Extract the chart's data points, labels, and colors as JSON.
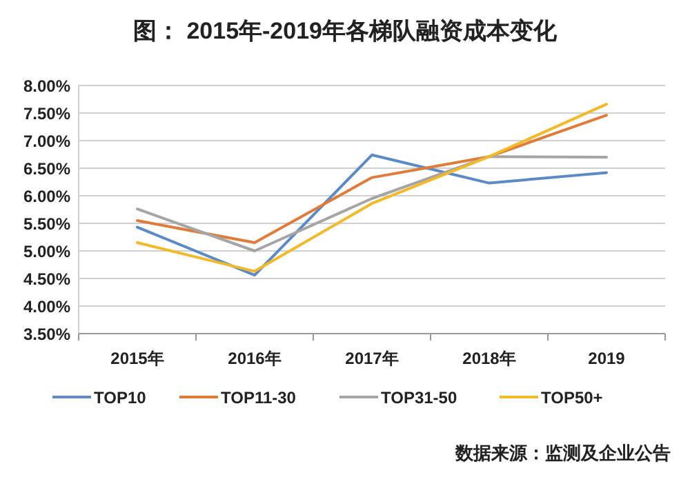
{
  "chart_data": {
    "type": "line",
    "title": "图： 2015年-2019年各梯队融资成本变化",
    "categories": [
      "2015年",
      "2016年",
      "2017年",
      "2018年",
      "2019"
    ],
    "series": [
      {
        "name": "TOP10",
        "color": "#5b8ac6",
        "values": [
          5.43,
          4.56,
          6.74,
          6.23,
          6.42
        ]
      },
      {
        "name": "TOP11-30",
        "color": "#e07b39",
        "values": [
          5.55,
          5.15,
          6.33,
          6.71,
          7.46
        ]
      },
      {
        "name": "TOP31-50",
        "color": "#a5a5a5",
        "values": [
          5.76,
          5.0,
          5.95,
          6.71,
          6.7
        ]
      },
      {
        "name": "TOP50+",
        "color": "#f2b929",
        "values": [
          5.15,
          4.63,
          5.86,
          6.71,
          7.66
        ]
      }
    ],
    "ylim": [
      3.5,
      8
    ],
    "yticks": [
      {
        "value": 3.5,
        "label": "3.50%"
      },
      {
        "value": 4,
        "label": "4.00%"
      },
      {
        "value": 4.5,
        "label": "4.50%"
      },
      {
        "value": 5,
        "label": "5.00%"
      },
      {
        "value": 5.5,
        "label": "5.50%"
      },
      {
        "value": 6,
        "label": "6.00%"
      },
      {
        "value": 6.5,
        "label": "6.50%"
      },
      {
        "value": 7,
        "label": "7.00%"
      },
      {
        "value": 7.5,
        "label": "7.50%"
      },
      {
        "value": 8,
        "label": "8.00%"
      }
    ],
    "grid": "y",
    "legend": "bottom",
    "line_style": "solid",
    "annotations": [
      "数据来源：监测及企业公告"
    ]
  }
}
